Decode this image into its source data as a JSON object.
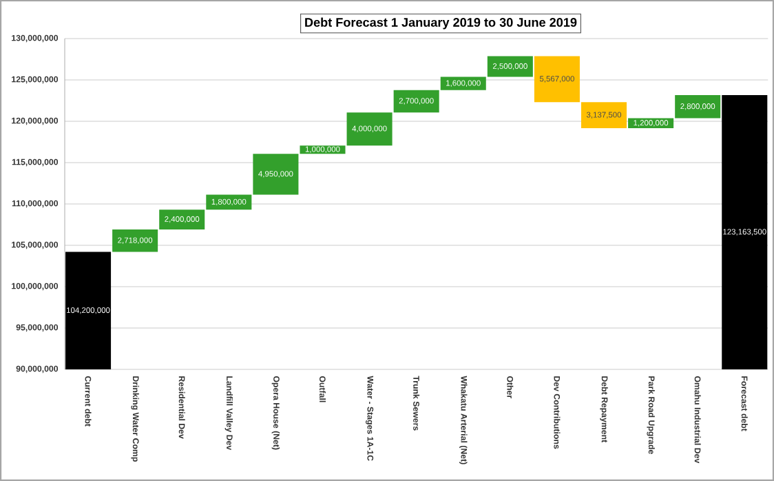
{
  "chart_data": {
    "type": "bar",
    "title": "Debt Forecast 1 January 2019 to 30 June 2019",
    "categories": [
      "Current debt",
      "Drinking Water Comp",
      "Residential Dev",
      "Landfill Valley Dev",
      "Opera House (Net)",
      "Outfall",
      "Water - Stages 1A-1C",
      "Trunk Sewers",
      "Whakatu Arterial (Net)",
      "Other",
      "Dev Contributions",
      "Debt Repayment",
      "Park Road Upgrade",
      "Omahu Industrial Dev",
      "Forecast debt"
    ],
    "values": [
      104200000,
      2718000,
      2400000,
      1800000,
      4950000,
      1000000,
      4000000,
      2700000,
      1600000,
      2500000,
      -5567000,
      -3137500,
      1200000,
      2800000,
      123163500
    ],
    "base": [
      null,
      104200000,
      106918000,
      109318000,
      111118000,
      116068000,
      117068000,
      121068000,
      123768000,
      125368000,
      127868000,
      122301000,
      119163500,
      120363500,
      null
    ],
    "colors": [
      "#000000",
      "#33a02c",
      "#33a02c",
      "#33a02c",
      "#33a02c",
      "#33a02c",
      "#33a02c",
      "#33a02c",
      "#33a02c",
      "#33a02c",
      "#ffc000",
      "#ffc000",
      "#33a02c",
      "#33a02c",
      "#000000"
    ],
    "value_labels": [
      "104,200,000",
      "2,718,000",
      "2,400,000",
      "1,800,000",
      "4,950,000",
      "1,000,000",
      "4,000,000",
      "2,700,000",
      "1,600,000",
      "2,500,000",
      "5,567,000",
      "3,137,500",
      "1,200,000",
      "2,800,000",
      "123,163,500"
    ],
    "ylim": [
      90000000,
      130000000
    ],
    "yticks": [
      {
        "value": 90000000,
        "label": "90,000,000"
      },
      {
        "value": 95000000,
        "label": "95,000,000"
      },
      {
        "value": 100000000,
        "label": "100,000,000"
      },
      {
        "value": 105000000,
        "label": "105,000,000"
      },
      {
        "value": 110000000,
        "label": "110,000,000"
      },
      {
        "value": 115000000,
        "label": "115,000,000"
      },
      {
        "value": 120000000,
        "label": "120,000,000"
      },
      {
        "value": 125000000,
        "label": "125,000,000"
      },
      {
        "value": 130000000,
        "label": "130,000,000"
      }
    ],
    "grid": "y"
  }
}
